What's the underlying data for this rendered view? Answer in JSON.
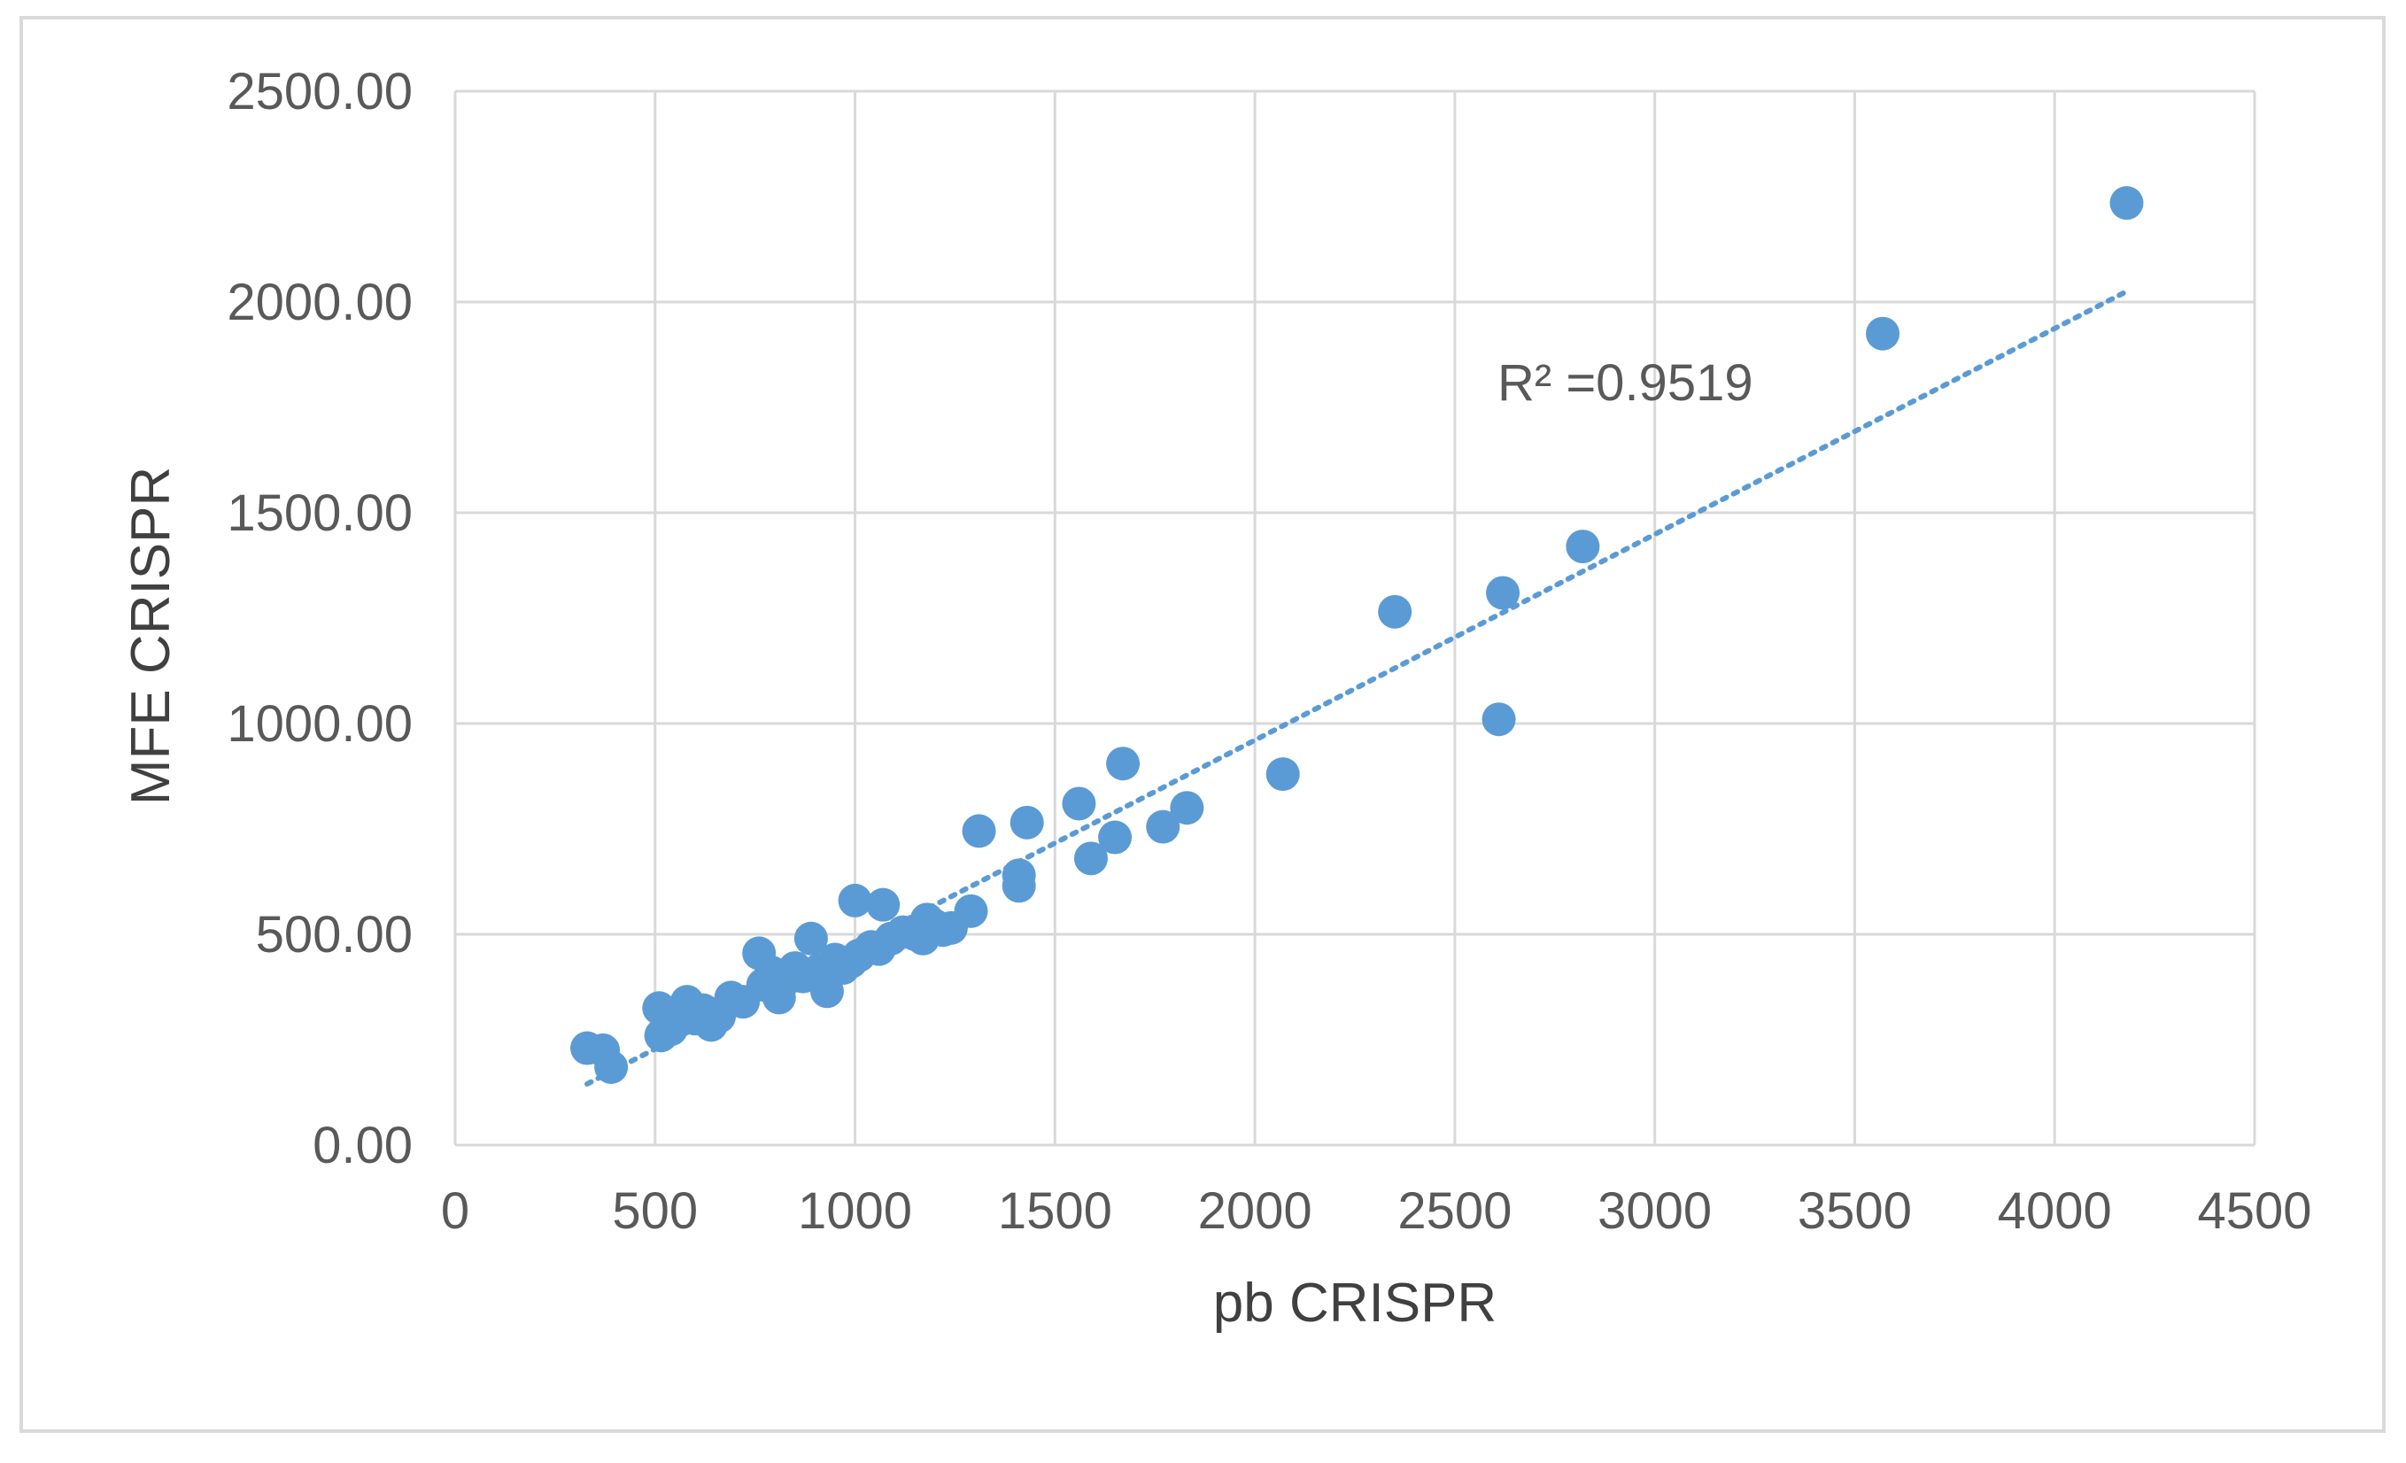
{
  "chart_data": {
    "type": "scatter",
    "xlabel": "pb CRISPR",
    "ylabel": "MFE CRISPR",
    "xlim": [
      0,
      4500
    ],
    "ylim": [
      0,
      2500
    ],
    "x_ticks": [
      "0",
      "500",
      "1000",
      "1500",
      "2000",
      "2500",
      "3000",
      "3500",
      "4000",
      "4500"
    ],
    "y_ticks": [
      "0.00",
      "500.00",
      "1000.00",
      "1500.00",
      "2000.00",
      "2500.00"
    ],
    "grid": true,
    "marker_color": "#5b9bd5",
    "trendline": {
      "type": "linear",
      "style": "dotted",
      "x_range": [
        330,
        4180
      ],
      "y_range": [
        145,
        2025
      ],
      "label": "R² =0.9519"
    },
    "series": [
      {
        "points": [
          [
            330,
            230
          ],
          [
            370,
            225
          ],
          [
            390,
            185
          ],
          [
            510,
            325
          ],
          [
            515,
            260
          ],
          [
            540,
            275
          ],
          [
            560,
            310
          ],
          [
            580,
            340
          ],
          [
            600,
            300
          ],
          [
            620,
            320
          ],
          [
            640,
            285
          ],
          [
            660,
            305
          ],
          [
            690,
            350
          ],
          [
            720,
            340
          ],
          [
            760,
            455
          ],
          [
            770,
            380
          ],
          [
            790,
            410
          ],
          [
            800,
            370
          ],
          [
            810,
            350
          ],
          [
            830,
            395
          ],
          [
            850,
            420
          ],
          [
            870,
            400
          ],
          [
            890,
            490
          ],
          [
            910,
            415
          ],
          [
            930,
            365
          ],
          [
            950,
            440
          ],
          [
            970,
            420
          ],
          [
            990,
            435
          ],
          [
            1000,
            580
          ],
          [
            1010,
            450
          ],
          [
            1040,
            470
          ],
          [
            1060,
            465
          ],
          [
            1070,
            570
          ],
          [
            1090,
            490
          ],
          [
            1120,
            505
          ],
          [
            1150,
            500
          ],
          [
            1170,
            490
          ],
          [
            1180,
            535
          ],
          [
            1200,
            520
          ],
          [
            1220,
            510
          ],
          [
            1240,
            515
          ],
          [
            1290,
            555
          ],
          [
            1310,
            745
          ],
          [
            1410,
            640
          ],
          [
            1410,
            615
          ],
          [
            1430,
            765
          ],
          [
            1560,
            810
          ],
          [
            1590,
            680
          ],
          [
            1650,
            730
          ],
          [
            1670,
            905
          ],
          [
            1770,
            755
          ],
          [
            1830,
            800
          ],
          [
            2070,
            880
          ],
          [
            2350,
            1265
          ],
          [
            2610,
            1010
          ],
          [
            2620,
            1310
          ],
          [
            2820,
            1420
          ],
          [
            3570,
            1925
          ],
          [
            4180,
            2235
          ]
        ]
      }
    ]
  }
}
